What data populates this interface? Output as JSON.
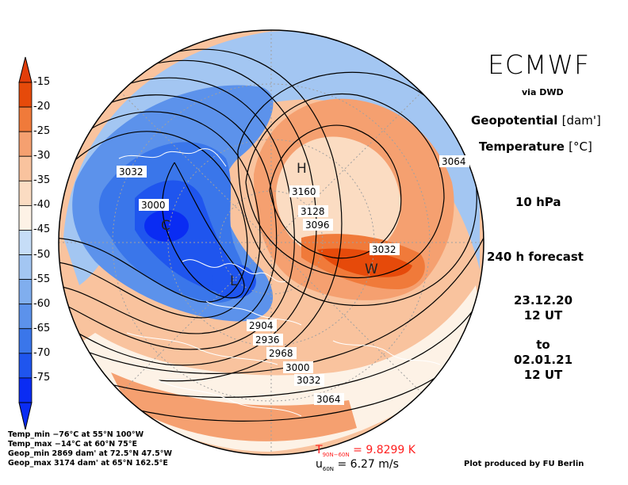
{
  "header": {
    "model": "ECMWF",
    "source": "via DWD",
    "param1_name": "Geopotential",
    "param1_unit": "[dam']",
    "param2_name": "Temperature",
    "param2_unit": "[°C]",
    "level": "10 hPa",
    "forecast": "240 h forecast",
    "init_date": "23.12.20",
    "init_time": "12 UT",
    "to_label": "to",
    "valid_date": "02.01.21",
    "valid_time": "12 UT"
  },
  "colorbar": {
    "labels": [
      "-15",
      "-20",
      "-25",
      "-30",
      "-35",
      "-40",
      "-45",
      "-50",
      "-55",
      "-60",
      "-65",
      "-70",
      "-75"
    ],
    "colors": [
      "#e64a0a",
      "#f07a3a",
      "#f5a070",
      "#f9c39e",
      "#fbdcc2",
      "#fdf2e6",
      "#c6ddf7",
      "#a3c6f2",
      "#80aeee",
      "#5c92eb",
      "#3a76ea",
      "#1f55ee",
      "#0a2cf3"
    ]
  },
  "map": {
    "contour_labels": [
      "3032",
      "3000",
      "3160",
      "3128",
      "3096",
      "3032",
      "3064",
      "2904",
      "2936",
      "2968",
      "3000",
      "3032",
      "3064"
    ],
    "high_label": "H",
    "low_label": "L",
    "warm_label": "W",
    "cold_label": "C"
  },
  "stats": {
    "temp_min": "Temp_min −76°C at 55°N 100°W",
    "temp_max": "Temp_max −14°C at 60°N 75°E",
    "geop_min": "Geop_min 2869 dam' at 72.5°N 47.5°W",
    "geop_max": "Geop_max 3174 dam' at 65°N 162.5°E"
  },
  "means": {
    "t_symbol": "T",
    "t_sub": "90N−60N",
    "t_value": "= 9.8299 K",
    "u_symbol": "u",
    "u_sub": "60N",
    "u_value": "= 6.27 m/s"
  },
  "credit": "Plot produced by FU Berlin"
}
